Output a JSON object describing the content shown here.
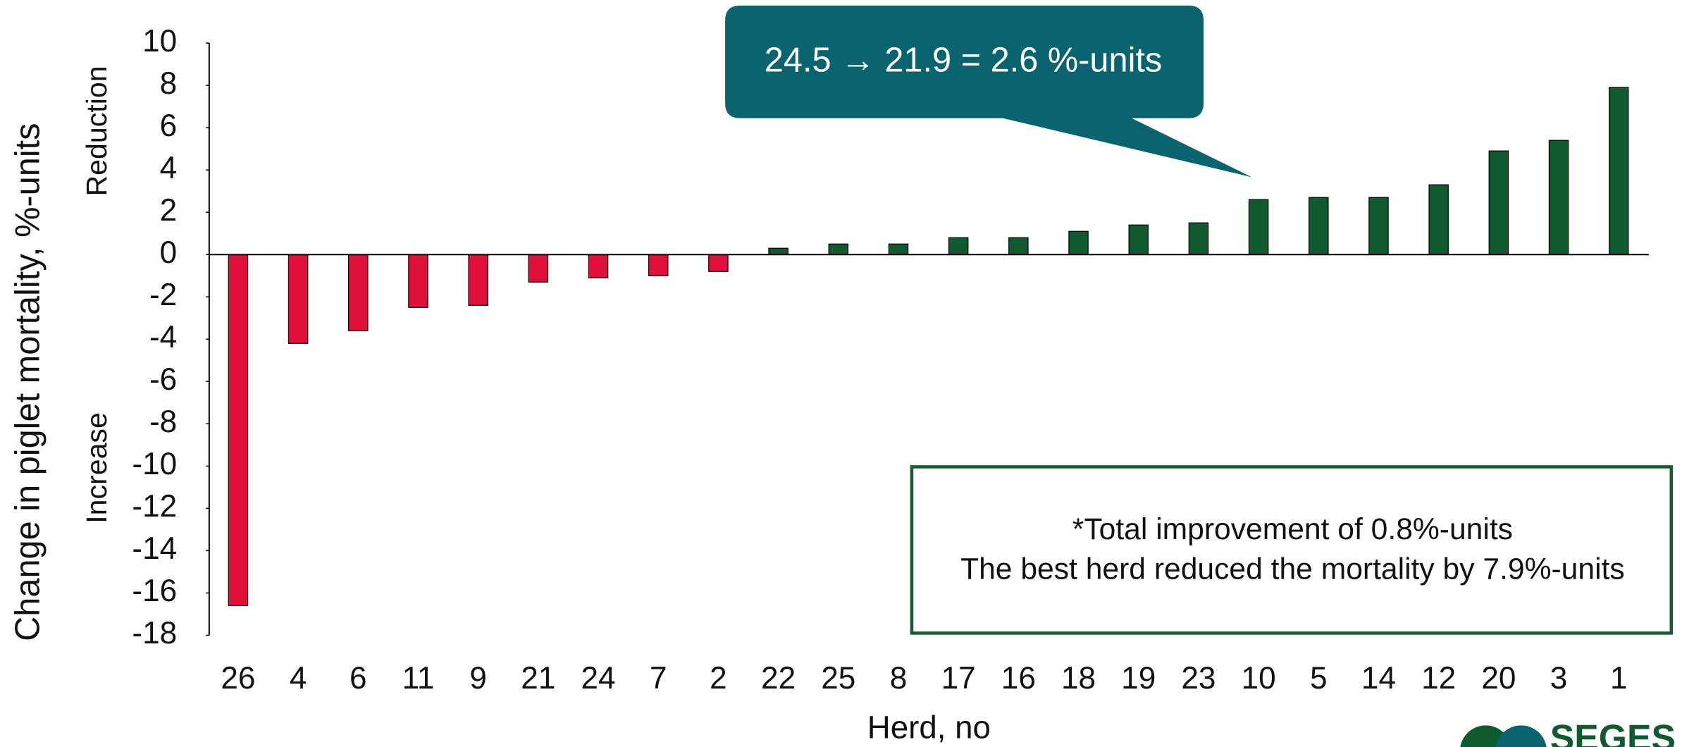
{
  "chart_data": {
    "type": "bar",
    "y_label": "Change in piglet mortality,  %-units",
    "y_label_top": "Reduction",
    "y_label_bottom": "Increase",
    "x_label": "Herd, no",
    "categories": [
      "26",
      "4",
      "6",
      "11",
      "9",
      "21",
      "24",
      "7",
      "2",
      "22",
      "25",
      "8",
      "17",
      "16",
      "18",
      "19",
      "23",
      "10",
      "5",
      "14",
      "12",
      "20",
      "3",
      "1"
    ],
    "values": [
      -16.6,
      -4.2,
      -3.6,
      -2.5,
      -2.4,
      -1.3,
      -1.1,
      -1.0,
      -0.8,
      0.3,
      0.5,
      0.5,
      0.8,
      0.8,
      1.1,
      1.4,
      1.5,
      2.6,
      2.7,
      2.7,
      3.3,
      4.9,
      5.4,
      7.9
    ],
    "color_negative": "#e0103a",
    "color_positive": "#0f5a2e",
    "ylim": [
      -18,
      10
    ],
    "yticks": [
      10,
      8,
      6,
      4,
      2,
      0,
      -2,
      -4,
      -6,
      -8,
      -10,
      -12,
      -14,
      -16,
      -18
    ],
    "callout": "24.5 → 21.9 = 2.6 %-units",
    "note": [
      "*Total improvement of 0.8%-units",
      "The best herd reduced the mortality by 7.9%-units"
    ],
    "logo": "SEGES"
  }
}
